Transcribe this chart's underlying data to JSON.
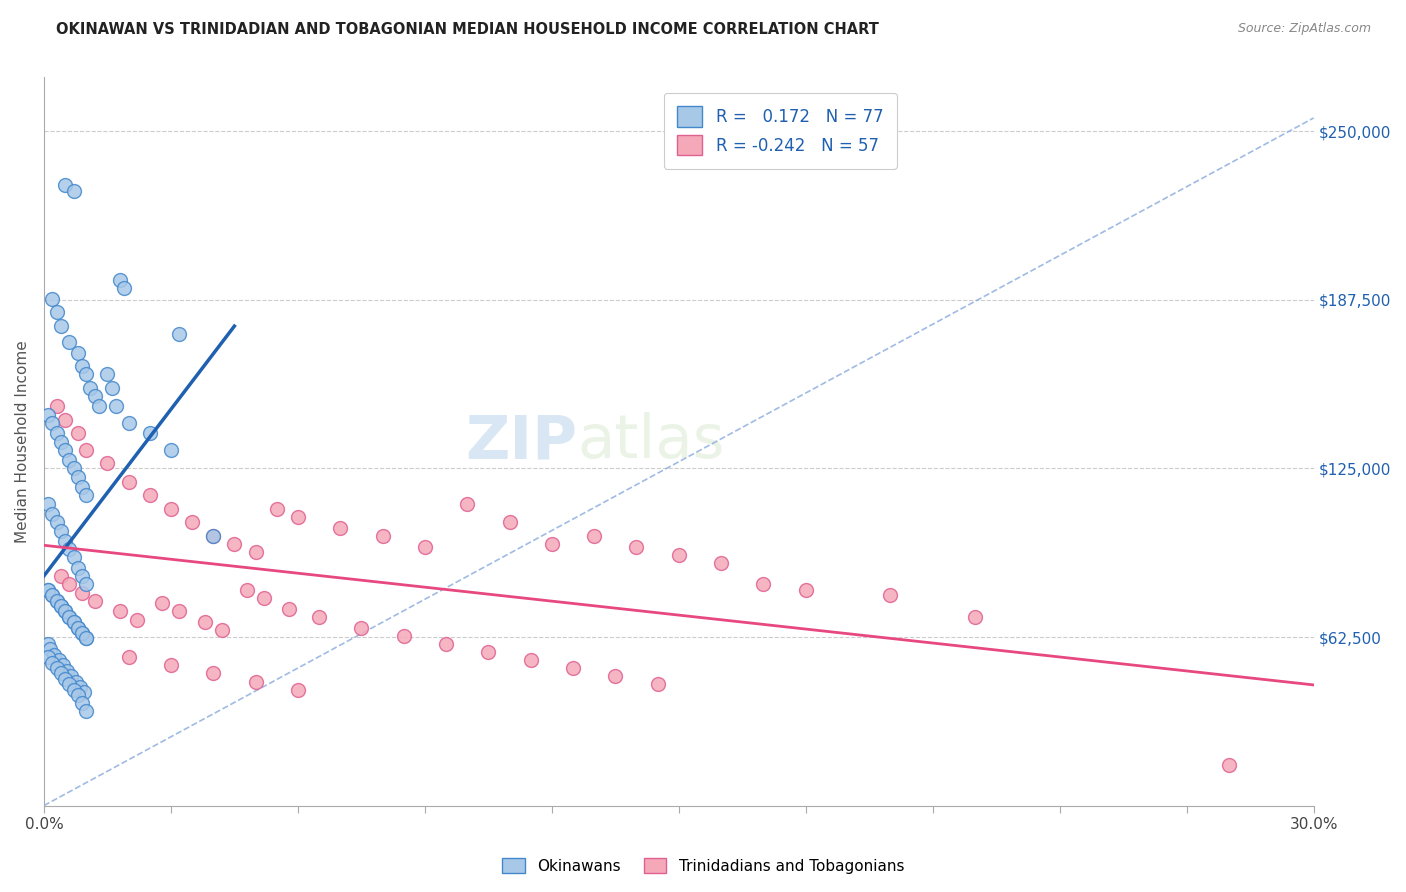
{
  "title": "OKINAWAN VS TRINIDADIAN AND TOBAGONIAN MEDIAN HOUSEHOLD INCOME CORRELATION CHART",
  "source": "Source: ZipAtlas.com",
  "ylabel": "Median Household Income",
  "right_ytick_labels": [
    "$250,000",
    "$187,500",
    "$125,000",
    "$62,500"
  ],
  "right_ytick_values": [
    250000,
    187500,
    125000,
    62500
  ],
  "xmin": 0.0,
  "xmax": 30.0,
  "ymin": 0,
  "ymax": 270000,
  "blue_color": "#a8c8e8",
  "pink_color": "#f4a8b8",
  "blue_line_color": "#2060b0",
  "pink_line_color": "#e84880",
  "blue_edge_color": "#4488cc",
  "pink_edge_color": "#e06090",
  "watermark_color": "#d0e4f0",
  "grid_color": "#cccccc",
  "diag_color": "#88aadd",
  "ok_x": [
    0.5,
    0.7,
    1.8,
    1.9,
    3.2,
    0.2,
    0.3,
    0.4,
    0.6,
    0.8,
    0.9,
    1.0,
    1.1,
    1.2,
    1.3,
    0.1,
    0.2,
    0.3,
    0.4,
    0.5,
    0.6,
    0.7,
    0.8,
    0.9,
    1.0,
    0.1,
    0.2,
    0.3,
    0.4,
    0.5,
    0.6,
    0.7,
    0.8,
    0.9,
    1.0,
    0.1,
    0.2,
    0.3,
    0.4,
    0.5,
    0.6,
    0.7,
    0.8,
    0.9,
    1.0,
    0.1,
    0.15,
    0.25,
    0.35,
    0.45,
    0.55,
    0.65,
    0.75,
    0.85,
    0.95,
    0.1,
    0.2,
    0.3,
    0.4,
    0.5,
    0.6,
    0.7,
    0.8,
    0.9,
    1.0,
    0.1,
    0.2,
    0.3,
    0.4,
    0.5,
    0.6,
    0.7,
    0.8,
    0.9,
    1.0,
    1.5,
    1.6,
    1.7,
    2.0,
    2.5,
    3.0,
    4.0
  ],
  "ok_y": [
    230000,
    228000,
    195000,
    192000,
    175000,
    188000,
    183000,
    178000,
    172000,
    168000,
    163000,
    160000,
    155000,
    152000,
    148000,
    145000,
    142000,
    138000,
    135000,
    132000,
    128000,
    125000,
    122000,
    118000,
    115000,
    112000,
    108000,
    105000,
    102000,
    98000,
    95000,
    92000,
    88000,
    85000,
    82000,
    80000,
    78000,
    76000,
    74000,
    72000,
    70000,
    68000,
    66000,
    64000,
    62000,
    60000,
    58000,
    56000,
    54000,
    52000,
    50000,
    48000,
    46000,
    44000,
    42000,
    80000,
    78000,
    76000,
    74000,
    72000,
    70000,
    68000,
    66000,
    64000,
    62000,
    55000,
    53000,
    51000,
    49000,
    47000,
    45000,
    43000,
    41000,
    38000,
    35000,
    160000,
    155000,
    148000,
    142000,
    138000,
    132000,
    100000
  ],
  "tri_x": [
    0.3,
    0.5,
    0.8,
    1.0,
    1.5,
    2.0,
    2.5,
    3.0,
    3.5,
    4.0,
    4.5,
    5.0,
    5.5,
    6.0,
    7.0,
    8.0,
    9.0,
    10.0,
    11.0,
    12.0,
    13.0,
    14.0,
    15.0,
    16.0,
    17.0,
    18.0,
    20.0,
    22.0,
    28.0,
    0.4,
    0.6,
    0.9,
    1.2,
    1.8,
    2.2,
    2.8,
    3.2,
    3.8,
    4.2,
    4.8,
    5.2,
    5.8,
    6.5,
    7.5,
    8.5,
    9.5,
    10.5,
    11.5,
    12.5,
    13.5,
    14.5,
    2.0,
    3.0,
    4.0,
    5.0,
    6.0
  ],
  "tri_y": [
    148000,
    143000,
    138000,
    132000,
    127000,
    120000,
    115000,
    110000,
    105000,
    100000,
    97000,
    94000,
    110000,
    107000,
    103000,
    100000,
    96000,
    112000,
    105000,
    97000,
    100000,
    96000,
    93000,
    90000,
    82000,
    80000,
    78000,
    70000,
    15000,
    85000,
    82000,
    79000,
    76000,
    72000,
    69000,
    75000,
    72000,
    68000,
    65000,
    80000,
    77000,
    73000,
    70000,
    66000,
    63000,
    60000,
    57000,
    54000,
    51000,
    48000,
    45000,
    55000,
    52000,
    49000,
    46000,
    43000
  ]
}
